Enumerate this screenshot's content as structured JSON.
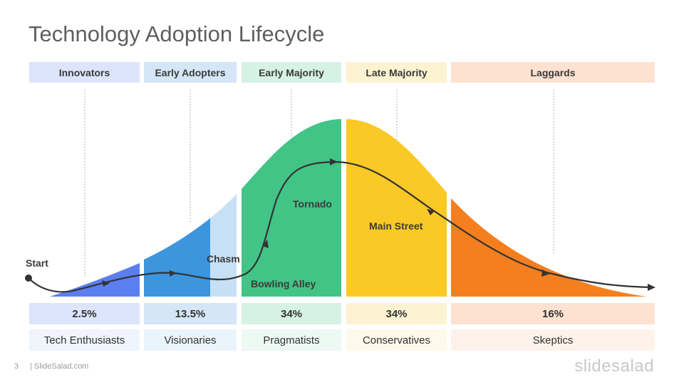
{
  "title": "Technology Adoption Lifecycle",
  "segments": [
    {
      "name": "Innovators",
      "percent": "2.5%",
      "group": "Tech Enthusiasts",
      "header_bg": "#dce5fb",
      "pct_bg": "#dce5fb",
      "group_bg": "#f0f4fd",
      "fill": "#5b7ff0"
    },
    {
      "name": "Early Adopters",
      "percent": "13.5%",
      "group": "Visionaries",
      "header_bg": "#d4e6f7",
      "pct_bg": "#d4e6f7",
      "group_bg": "#ecf4fb",
      "fill": "#3d95de"
    },
    {
      "name": "Early Majority",
      "percent": "34%",
      "group": "Pragmatists",
      "header_bg": "#d6f2e4",
      "pct_bg": "#d6f2e4",
      "group_bg": "#edf9f3",
      "fill": "#42c486"
    },
    {
      "name": "Late Majority",
      "percent": "34%",
      "group": "Conservatives",
      "header_bg": "#fdf3d2",
      "pct_bg": "#fdf3d2",
      "group_bg": "#fef9ea",
      "fill": "#fbc926"
    },
    {
      "name": "Laggards",
      "percent": "16%",
      "group": "Skeptics",
      "header_bg": "#fde2d2",
      "pct_bg": "#fde2d2",
      "group_bg": "#fef2ea",
      "fill": "#f57f1f"
    }
  ],
  "labels": {
    "start": "Start",
    "chasm": "Chasm",
    "tornado": "Tornado",
    "bowling_alley": "Bowling Alley",
    "main_street": "Main Street"
  },
  "footer": {
    "page_number": "3",
    "site": "| SlideSalad.com",
    "brand": "slidesalad"
  }
}
